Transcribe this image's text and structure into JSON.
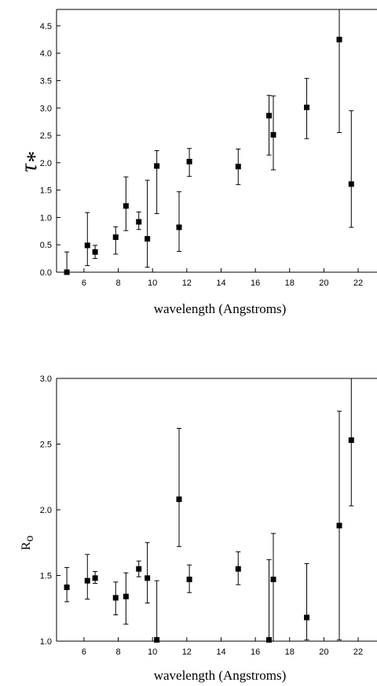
{
  "chart_data": [
    {
      "type": "scatter",
      "panel": "top",
      "xlabel": "wavelength (Angstroms)",
      "ylabel_main": "τ",
      "ylabel_sub": "*",
      "xlim": [
        4.4,
        23.1
      ],
      "ylim": [
        0,
        4.8
      ],
      "xticks": [
        6,
        8,
        10,
        12,
        14,
        16,
        18,
        20,
        22
      ],
      "yticks": [
        0.0,
        0.5,
        1.0,
        1.5,
        2.0,
        2.5,
        3.0,
        3.5,
        4.0,
        4.5
      ],
      "ytick_labels": [
        "0.0",
        "0.5",
        "1.0",
        "1.5",
        "2.0",
        "2.5",
        "3.0",
        "3.5",
        "4.0",
        "4.5"
      ],
      "xtick_labels": [
        "6",
        "8",
        "10",
        "12",
        "14",
        "16",
        "18",
        "20",
        "22"
      ],
      "grid": false,
      "legend": "none",
      "points": [
        {
          "x": 5.0,
          "y": 0.0,
          "lo": 0.0,
          "hi": 0.37
        },
        {
          "x": 6.2,
          "y": 0.49,
          "lo": 0.12,
          "hi": 1.09
        },
        {
          "x": 6.65,
          "y": 0.37,
          "lo": 0.25,
          "hi": 0.49
        },
        {
          "x": 7.85,
          "y": 0.64,
          "lo": 0.33,
          "hi": 0.83
        },
        {
          "x": 8.45,
          "y": 1.21,
          "lo": 0.76,
          "hi": 1.74
        },
        {
          "x": 9.2,
          "y": 0.92,
          "lo": 0.78,
          "hi": 1.1
        },
        {
          "x": 9.7,
          "y": 0.61,
          "lo": 0.09,
          "hi": 1.68
        },
        {
          "x": 10.25,
          "y": 1.94,
          "lo": 1.07,
          "hi": 2.22
        },
        {
          "x": 11.55,
          "y": 0.82,
          "lo": 0.38,
          "hi": 1.47
        },
        {
          "x": 12.15,
          "y": 2.02,
          "lo": 1.75,
          "hi": 2.26
        },
        {
          "x": 15.0,
          "y": 1.93,
          "lo": 1.6,
          "hi": 2.25
        },
        {
          "x": 16.8,
          "y": 2.86,
          "lo": 2.14,
          "hi": 3.23
        },
        {
          "x": 17.05,
          "y": 2.51,
          "lo": 1.87,
          "hi": 3.22
        },
        {
          "x": 19.0,
          "y": 3.01,
          "lo": 2.44,
          "hi": 3.54
        },
        {
          "x": 20.9,
          "y": 4.25,
          "lo": 2.55,
          "hi": 4.8
        },
        {
          "x": 21.6,
          "y": 1.61,
          "lo": 0.82,
          "hi": 2.95
        }
      ]
    },
    {
      "type": "scatter",
      "panel": "bottom",
      "xlabel": "wavelength (Angstroms)",
      "ylabel_main": "R",
      "ylabel_sub": "o",
      "xlim": [
        4.4,
        23.1
      ],
      "ylim": [
        1.0,
        3.0
      ],
      "xticks": [
        6,
        8,
        10,
        12,
        14,
        16,
        18,
        20,
        22
      ],
      "yticks": [
        1.0,
        1.5,
        2.0,
        2.5,
        3.0
      ],
      "ytick_labels": [
        "1.0",
        "1.5",
        "2.0",
        "2.5",
        "3.0"
      ],
      "xtick_labels": [
        "6",
        "8",
        "10",
        "12",
        "14",
        "16",
        "18",
        "20",
        "22"
      ],
      "grid": false,
      "legend": "none",
      "points": [
        {
          "x": 5.0,
          "y": 1.41,
          "lo": 1.3,
          "hi": 1.56
        },
        {
          "x": 6.2,
          "y": 1.46,
          "lo": 1.32,
          "hi": 1.66
        },
        {
          "x": 6.65,
          "y": 1.48,
          "lo": 1.44,
          "hi": 1.53
        },
        {
          "x": 7.85,
          "y": 1.33,
          "lo": 1.2,
          "hi": 1.45
        },
        {
          "x": 8.45,
          "y": 1.34,
          "lo": 1.13,
          "hi": 1.52
        },
        {
          "x": 9.2,
          "y": 1.55,
          "lo": 1.49,
          "hi": 1.61
        },
        {
          "x": 9.7,
          "y": 1.48,
          "lo": 1.29,
          "hi": 1.75
        },
        {
          "x": 10.25,
          "y": 1.01,
          "lo": 1.0,
          "hi": 1.46
        },
        {
          "x": 11.55,
          "y": 2.08,
          "lo": 1.72,
          "hi": 2.62
        },
        {
          "x": 12.15,
          "y": 1.47,
          "lo": 1.37,
          "hi": 1.58
        },
        {
          "x": 15.0,
          "y": 1.55,
          "lo": 1.43,
          "hi": 1.68
        },
        {
          "x": 16.8,
          "y": 1.01,
          "lo": 1.0,
          "hi": 1.62
        },
        {
          "x": 17.05,
          "y": 1.47,
          "lo": 1.0,
          "hi": 1.82
        },
        {
          "x": 19.0,
          "y": 1.18,
          "lo": 1.01,
          "hi": 1.59
        },
        {
          "x": 20.9,
          "y": 1.88,
          "lo": 1.01,
          "hi": 2.75
        },
        {
          "x": 21.6,
          "y": 2.53,
          "lo": 2.03,
          "hi": 3.0
        }
      ]
    }
  ]
}
